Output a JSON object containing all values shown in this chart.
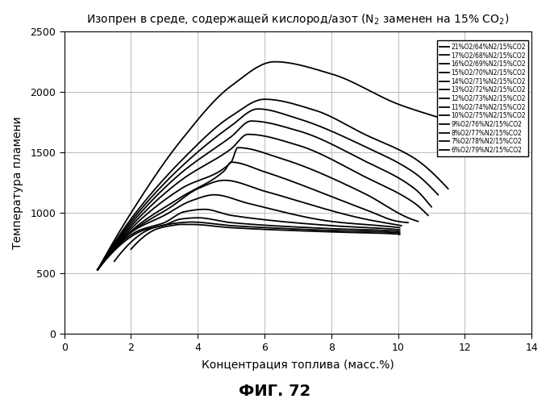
{
  "title": "Изопрен в среде, содержащей кислород/азот (N₂ заменен на 15% CO₂)",
  "xlabel": "Концентрация топлива (масс.%)",
  "ylabel": "Температура пламени",
  "fig_label": "ФИГ. 72",
  "xlim": [
    0,
    14
  ],
  "ylim": [
    0,
    2500
  ],
  "xticks": [
    0,
    2,
    4,
    6,
    8,
    10,
    12,
    14
  ],
  "yticks": [
    0,
    500,
    1000,
    1500,
    2000,
    2500
  ],
  "series": [
    {
      "label": "21%O2/64%N2/15%CO2",
      "points": [
        [
          1.0,
          530
        ],
        [
          2.0,
          1000
        ],
        [
          3.5,
          1600
        ],
        [
          5.0,
          2050
        ],
        [
          6.3,
          2250
        ],
        [
          8.0,
          2150
        ],
        [
          10.0,
          1900
        ],
        [
          12.0,
          1720
        ],
        [
          13.5,
          1560
        ]
      ]
    },
    {
      "label": "17%O2/68%N2/15%CO2",
      "points": [
        [
          1.0,
          530
        ],
        [
          2.0,
          950
        ],
        [
          3.5,
          1430
        ],
        [
          5.0,
          1800
        ],
        [
          6.0,
          1940
        ],
        [
          7.5,
          1850
        ],
        [
          9.0,
          1650
        ],
        [
          10.5,
          1450
        ],
        [
          11.5,
          1200
        ]
      ]
    },
    {
      "label": "16%O2/69%N2/15%CO2",
      "points": [
        [
          1.0,
          530
        ],
        [
          2.0,
          930
        ],
        [
          3.5,
          1380
        ],
        [
          5.0,
          1720
        ],
        [
          5.8,
          1860
        ],
        [
          7.0,
          1780
        ],
        [
          9.0,
          1550
        ],
        [
          10.5,
          1330
        ],
        [
          11.2,
          1150
        ]
      ]
    },
    {
      "label": "15%O2/70%N2/15%CO2",
      "points": [
        [
          1.0,
          530
        ],
        [
          2.0,
          910
        ],
        [
          3.5,
          1330
        ],
        [
          5.0,
          1630
        ],
        [
          5.6,
          1760
        ],
        [
          7.0,
          1680
        ],
        [
          9.0,
          1430
        ],
        [
          10.5,
          1200
        ],
        [
          11.0,
          1050
        ]
      ]
    },
    {
      "label": "14%O2/71%N2/15%CO2",
      "points": [
        [
          1.0,
          530
        ],
        [
          2.0,
          890
        ],
        [
          3.5,
          1270
        ],
        [
          5.0,
          1530
        ],
        [
          5.5,
          1650
        ],
        [
          7.0,
          1560
        ],
        [
          9.0,
          1300
        ],
        [
          10.5,
          1080
        ],
        [
          10.9,
          980
        ]
      ]
    },
    {
      "label": "13%O2/72%N2/15%CO2",
      "points": [
        [
          1.0,
          530
        ],
        [
          2.0,
          870
        ],
        [
          3.5,
          1200
        ],
        [
          5.0,
          1420
        ],
        [
          5.2,
          1540
        ],
        [
          6.5,
          1450
        ],
        [
          9.0,
          1160
        ],
        [
          10.3,
          960
        ],
        [
          10.6,
          930
        ]
      ]
    },
    {
      "label": "12%O2/73%N2/15%CO2",
      "points": [
        [
          1.0,
          530
        ],
        [
          2.0,
          850
        ],
        [
          3.5,
          1130
        ],
        [
          4.8,
          1350
        ],
        [
          5.0,
          1420
        ],
        [
          6.0,
          1340
        ],
        [
          9.0,
          1030
        ],
        [
          10.0,
          930
        ],
        [
          10.3,
          920
        ]
      ]
    },
    {
      "label": "11%O2/74%N2/15%CO2",
      "points": [
        [
          1.0,
          530
        ],
        [
          2.0,
          840
        ],
        [
          3.2,
          1050
        ],
        [
          4.0,
          1200
        ],
        [
          4.8,
          1270
        ],
        [
          6.0,
          1180
        ],
        [
          9.0,
          950
        ],
        [
          10.0,
          900
        ],
        [
          10.1,
          895
        ]
      ]
    },
    {
      "label": "10%O2/75%N2/15%CO2",
      "points": [
        [
          1.0,
          530
        ],
        [
          2.0,
          840
        ],
        [
          3.0,
          980
        ],
        [
          3.8,
          1100
        ],
        [
          4.5,
          1150
        ],
        [
          5.5,
          1080
        ],
        [
          8.0,
          930
        ],
        [
          10.0,
          880
        ],
        [
          10.05,
          878
        ]
      ]
    },
    {
      "label": "9%O2/76%N2/15%CO2",
      "points": [
        [
          1.0,
          530
        ],
        [
          2.2,
          850
        ],
        [
          3.0,
          920
        ],
        [
          3.6,
          1010
        ],
        [
          4.2,
          1030
        ],
        [
          5.0,
          980
        ],
        [
          8.0,
          895
        ],
        [
          10.0,
          862
        ],
        [
          10.05,
          860
        ]
      ]
    },
    {
      "label": "8%O2/77%N2/15%CO2",
      "points": [
        [
          1.0,
          530
        ],
        [
          2.4,
          860
        ],
        [
          3.0,
          900
        ],
        [
          3.5,
          950
        ],
        [
          4.0,
          960
        ],
        [
          5.0,
          920
        ],
        [
          8.0,
          870
        ],
        [
          10.0,
          848
        ],
        [
          10.05,
          845
        ]
      ]
    },
    {
      "label": "7%O2/78%N2/15%CO2",
      "points": [
        [
          1.5,
          600
        ],
        [
          2.6,
          870
        ],
        [
          3.0,
          900
        ],
        [
          3.5,
          920
        ],
        [
          3.8,
          925
        ],
        [
          5.0,
          895
        ],
        [
          8.0,
          855
        ],
        [
          10.0,
          836
        ],
        [
          10.05,
          833
        ]
      ]
    },
    {
      "label": "6%O2/79%N2/15%CO2",
      "points": [
        [
          2.0,
          700
        ],
        [
          2.8,
          870
        ],
        [
          3.2,
          895
        ],
        [
          3.5,
          905
        ],
        [
          3.8,
          905
        ],
        [
          5.0,
          878
        ],
        [
          8.0,
          843
        ],
        [
          10.0,
          825
        ],
        [
          10.05,
          822
        ]
      ]
    }
  ],
  "line_color": "black",
  "bg_color": "white",
  "grid_color": "#aaaaaa"
}
